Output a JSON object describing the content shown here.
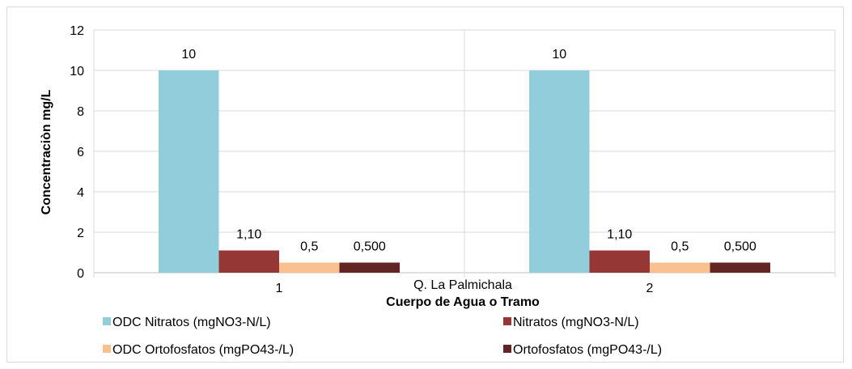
{
  "chart_data": {
    "type": "bar",
    "categories": [
      "1",
      "2"
    ],
    "group_label": "Q. La Palmichala",
    "xlabel": "Cuerpo de Agua o Tramo",
    "ylabel": "Concentraciòn mg/L",
    "ylim": [
      0,
      12
    ],
    "yticks": [
      0,
      2,
      4,
      6,
      8,
      10,
      12
    ],
    "grid": "major y and category separators",
    "legend_position": "bottom",
    "series": [
      {
        "name": "ODC Nitratos (mgNO3-N/L)",
        "color": "#92CDDC",
        "values": [
          10,
          10
        ],
        "labels": [
          "10",
          "10"
        ]
      },
      {
        "name": "Nitratos (mgNO3-N/L)",
        "color": "#953735",
        "values": [
          1.1,
          1.1
        ],
        "labels": [
          "1,10",
          "1,10"
        ]
      },
      {
        "name": "ODC Ortofosfatos (mgPO43-/L)",
        "color": "#FAC090",
        "values": [
          0.5,
          0.5
        ],
        "labels": [
          "0,5",
          "0,5"
        ]
      },
      {
        "name": "Ortofosfatos (mgPO43-/L)",
        "color": "#632523",
        "values": [
          0.5,
          0.5
        ],
        "labels": [
          "0,500",
          "0,500"
        ]
      }
    ]
  }
}
